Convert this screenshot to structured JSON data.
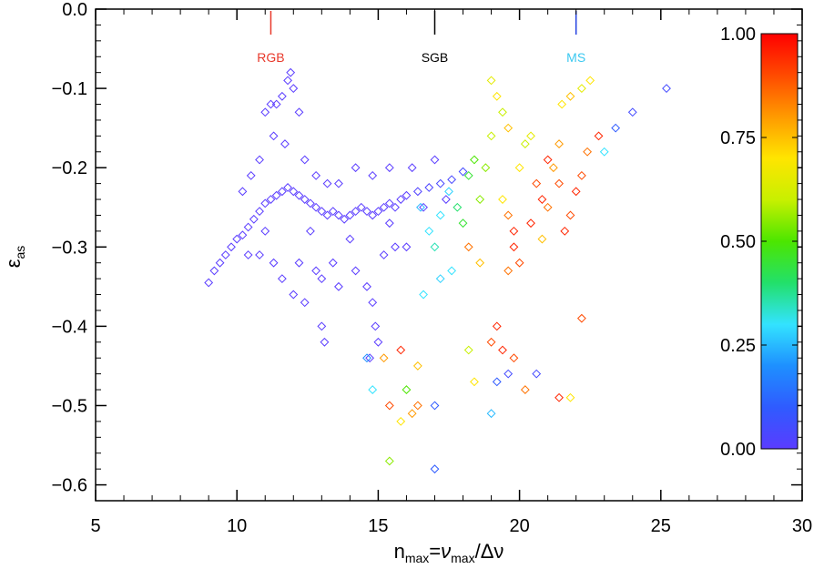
{
  "chart_data": {
    "type": "scatter",
    "title": "",
    "xlabel": "n_max = ν_max/Δν",
    "xlabel_parts": {
      "base": "n",
      "base_sub": "max",
      "eq": "=",
      "nu": "ν",
      "nu_sub": "max",
      "slash": "/Δν"
    },
    "ylabel": "ε_as",
    "ylabel_parts": {
      "symbol": "ε",
      "sub": "as"
    },
    "xlim": [
      5,
      30
    ],
    "ylim": [
      -0.62,
      0.0
    ],
    "xticks": [
      5,
      10,
      15,
      20,
      25,
      30
    ],
    "xtick_labels": [
      "5",
      "10",
      "15",
      "20",
      "25",
      "30"
    ],
    "yticks": [
      0.0,
      -0.1,
      -0.2,
      -0.3,
      -0.4,
      -0.5,
      -0.6
    ],
    "ytick_labels": [
      "0.0",
      "−0.1",
      "−0.2",
      "−0.3",
      "−0.4",
      "−0.5",
      "−0.6"
    ],
    "marker": "diamond-open",
    "grid": false,
    "annotations": [
      {
        "text": "RGB",
        "x": 11.2,
        "color": "#e8382a"
      },
      {
        "text": "SGB",
        "x": 17.0,
        "color": "#000000"
      },
      {
        "text": "MS",
        "x": 22.0,
        "color": "#3ac8f0",
        "line_color": "#2440e0"
      }
    ],
    "colorbar": {
      "range": [
        0.0,
        1.0
      ],
      "ticks": [
        1.0,
        0.75,
        0.5,
        0.25,
        0.0
      ],
      "tick_labels": [
        "1.00",
        "0.75",
        "0.50",
        "0.25",
        "0.00"
      ],
      "colormap": [
        "#5a3cff",
        "#2f5bff",
        "#1e90ff",
        "#33e3ff",
        "#22e06a",
        "#4ce600",
        "#c8f000",
        "#ffe500",
        "#ff9a00",
        "#ff4a00",
        "#ff0000"
      ]
    },
    "series": [
      {
        "description": "RGB branch (c≈0.0–0.05)",
        "points": [
          [
            9.0,
            -0.345,
            0.0
          ],
          [
            9.2,
            -0.33,
            0.0
          ],
          [
            9.4,
            -0.32,
            0.0
          ],
          [
            9.6,
            -0.31,
            0.0
          ],
          [
            9.8,
            -0.3,
            0.0
          ],
          [
            10.0,
            -0.29,
            0.0
          ],
          [
            10.2,
            -0.285,
            0.0
          ],
          [
            10.4,
            -0.275,
            0.0
          ],
          [
            10.6,
            -0.265,
            0.0
          ],
          [
            10.8,
            -0.255,
            0.0
          ],
          [
            11.0,
            -0.245,
            0.0
          ],
          [
            11.2,
            -0.24,
            0.0
          ],
          [
            11.4,
            -0.235,
            0.0
          ],
          [
            11.6,
            -0.23,
            0.0
          ],
          [
            11.8,
            -0.225,
            0.0
          ],
          [
            12.0,
            -0.23,
            0.0
          ],
          [
            12.2,
            -0.235,
            0.0
          ],
          [
            12.4,
            -0.24,
            0.0
          ],
          [
            12.6,
            -0.245,
            0.0
          ],
          [
            12.8,
            -0.25,
            0.0
          ],
          [
            13.0,
            -0.255,
            0.0
          ],
          [
            13.2,
            -0.26,
            0.0
          ],
          [
            13.4,
            -0.255,
            0.0
          ],
          [
            13.6,
            -0.26,
            0.0
          ],
          [
            13.8,
            -0.265,
            0.0
          ],
          [
            14.0,
            -0.26,
            0.0
          ],
          [
            14.2,
            -0.255,
            0.0
          ],
          [
            14.4,
            -0.25,
            0.0
          ],
          [
            14.6,
            -0.255,
            0.0
          ],
          [
            14.8,
            -0.26,
            0.0
          ],
          [
            15.0,
            -0.255,
            0.0
          ],
          [
            15.2,
            -0.25,
            0.0
          ],
          [
            15.4,
            -0.245,
            0.0
          ],
          [
            15.6,
            -0.25,
            0.0
          ],
          [
            15.8,
            -0.24,
            0.0
          ],
          [
            16.0,
            -0.235,
            0.0
          ],
          [
            16.4,
            -0.23,
            0.02
          ],
          [
            16.8,
            -0.225,
            0.03
          ],
          [
            17.2,
            -0.22,
            0.04
          ],
          [
            17.6,
            -0.215,
            0.04
          ],
          [
            18.0,
            -0.205,
            0.05
          ],
          [
            11.0,
            -0.13,
            0.0
          ],
          [
            11.2,
            -0.12,
            0.0
          ],
          [
            11.4,
            -0.12,
            0.0
          ],
          [
            11.6,
            -0.11,
            0.0
          ],
          [
            11.8,
            -0.09,
            0.0
          ],
          [
            11.9,
            -0.08,
            0.0
          ],
          [
            12.0,
            -0.1,
            0.0
          ],
          [
            12.2,
            -0.13,
            0.0
          ],
          [
            11.3,
            -0.16,
            0.0
          ],
          [
            11.7,
            -0.17,
            0.0
          ],
          [
            12.4,
            -0.19,
            0.0
          ],
          [
            12.8,
            -0.21,
            0.0
          ],
          [
            13.2,
            -0.22,
            0.0
          ],
          [
            10.8,
            -0.19,
            0.0
          ],
          [
            10.5,
            -0.21,
            0.0
          ],
          [
            10.2,
            -0.23,
            0.0
          ],
          [
            10.4,
            -0.31,
            0.0
          ],
          [
            10.8,
            -0.31,
            0.0
          ],
          [
            11.3,
            -0.32,
            0.0
          ],
          [
            11.6,
            -0.34,
            0.0
          ],
          [
            12.0,
            -0.36,
            0.0
          ],
          [
            12.4,
            -0.37,
            0.0
          ],
          [
            12.8,
            -0.33,
            0.0
          ],
          [
            13.0,
            -0.4,
            0.0
          ],
          [
            13.1,
            -0.42,
            0.0
          ],
          [
            13.6,
            -0.35,
            0.0
          ],
          [
            14.2,
            -0.33,
            0.0
          ],
          [
            14.6,
            -0.35,
            0.0
          ],
          [
            14.8,
            -0.37,
            0.0
          ],
          [
            14.9,
            -0.4,
            0.0
          ],
          [
            15.0,
            -0.42,
            0.0
          ],
          [
            14.7,
            -0.44,
            0.0
          ],
          [
            15.2,
            -0.31,
            0.0
          ],
          [
            15.6,
            -0.3,
            0.0
          ],
          [
            16.0,
            -0.3,
            0.0
          ],
          [
            14.2,
            -0.2,
            0.0
          ],
          [
            14.8,
            -0.21,
            0.0
          ],
          [
            15.4,
            -0.2,
            0.0
          ],
          [
            16.2,
            -0.2,
            0.0
          ],
          [
            17.0,
            -0.19,
            0.0
          ],
          [
            13.0,
            -0.34,
            0.0
          ],
          [
            13.4,
            -0.32,
            0.0
          ],
          [
            12.2,
            -0.32,
            0.0
          ],
          [
            11.0,
            -0.28,
            0.0
          ],
          [
            12.6,
            -0.28,
            0.0
          ],
          [
            14.0,
            -0.29,
            0.0
          ],
          [
            15.4,
            -0.27,
            0.0
          ],
          [
            16.6,
            -0.25,
            0.0
          ],
          [
            17.4,
            -0.24,
            0.0
          ],
          [
            13.6,
            -0.22,
            0.0
          ]
        ]
      },
      {
        "description": "SGB/MS region (c≈0.2–1.0)",
        "points": [
          [
            16.5,
            -0.25,
            0.25
          ],
          [
            16.8,
            -0.28,
            0.3
          ],
          [
            17.0,
            -0.3,
            0.35
          ],
          [
            17.2,
            -0.26,
            0.3
          ],
          [
            17.5,
            -0.23,
            0.28
          ],
          [
            17.8,
            -0.25,
            0.4
          ],
          [
            18.0,
            -0.27,
            0.45
          ],
          [
            18.2,
            -0.21,
            0.45
          ],
          [
            18.4,
            -0.19,
            0.5
          ],
          [
            18.6,
            -0.24,
            0.55
          ],
          [
            18.8,
            -0.2,
            0.55
          ],
          [
            19.0,
            -0.16,
            0.6
          ],
          [
            19.0,
            -0.09,
            0.65
          ],
          [
            19.2,
            -0.11,
            0.7
          ],
          [
            19.4,
            -0.13,
            0.6
          ],
          [
            19.6,
            -0.15,
            0.75
          ],
          [
            19.4,
            -0.24,
            0.7
          ],
          [
            19.6,
            -0.26,
            0.85
          ],
          [
            19.8,
            -0.28,
            0.95
          ],
          [
            20.0,
            -0.2,
            0.7
          ],
          [
            20.2,
            -0.17,
            0.6
          ],
          [
            20.4,
            -0.16,
            0.65
          ],
          [
            20.6,
            -0.22,
            0.9
          ],
          [
            20.8,
            -0.24,
            0.95
          ],
          [
            21.0,
            -0.25,
            0.85
          ],
          [
            21.2,
            -0.2,
            0.8
          ],
          [
            21.4,
            -0.22,
            0.9
          ],
          [
            21.6,
            -0.28,
            0.95
          ],
          [
            21.8,
            -0.26,
            0.9
          ],
          [
            22.0,
            -0.23,
            0.95
          ],
          [
            22.2,
            -0.21,
            0.9
          ],
          [
            22.4,
            -0.18,
            0.85
          ],
          [
            21.5,
            -0.12,
            0.7
          ],
          [
            21.8,
            -0.11,
            0.75
          ],
          [
            22.2,
            -0.1,
            0.65
          ],
          [
            22.5,
            -0.09,
            0.7
          ],
          [
            22.8,
            -0.16,
            0.95
          ],
          [
            23.0,
            -0.18,
            0.3
          ],
          [
            23.4,
            -0.15,
            0.1
          ],
          [
            24.0,
            -0.13,
            0.05
          ],
          [
            25.2,
            -0.1,
            0.05
          ],
          [
            19.6,
            -0.33,
            0.85
          ],
          [
            20.0,
            -0.32,
            0.9
          ],
          [
            18.6,
            -0.32,
            0.75
          ],
          [
            18.2,
            -0.3,
            0.85
          ],
          [
            17.6,
            -0.33,
            0.3
          ],
          [
            17.2,
            -0.34,
            0.28
          ],
          [
            16.6,
            -0.36,
            0.3
          ],
          [
            19.2,
            -0.4,
            0.95
          ],
          [
            19.0,
            -0.42,
            0.9
          ],
          [
            19.4,
            -0.43,
            0.95
          ],
          [
            19.8,
            -0.44,
            0.9
          ],
          [
            19.6,
            -0.46,
            0.05
          ],
          [
            19.2,
            -0.47,
            0.1
          ],
          [
            19.0,
            -0.51,
            0.25
          ],
          [
            18.2,
            -0.43,
            0.6
          ],
          [
            18.4,
            -0.47,
            0.7
          ],
          [
            16.4,
            -0.45,
            0.75
          ],
          [
            16.0,
            -0.48,
            0.5
          ],
          [
            15.8,
            -0.52,
            0.7
          ],
          [
            16.2,
            -0.51,
            0.8
          ],
          [
            15.4,
            -0.57,
            0.55
          ],
          [
            17.0,
            -0.58,
            0.1
          ],
          [
            17.0,
            -0.5,
            0.1
          ],
          [
            20.2,
            -0.48,
            0.85
          ],
          [
            20.6,
            -0.46,
            0.05
          ],
          [
            21.4,
            -0.49,
            0.95
          ],
          [
            21.8,
            -0.49,
            0.7
          ],
          [
            22.2,
            -0.39,
            0.9
          ],
          [
            14.8,
            -0.48,
            0.3
          ],
          [
            15.2,
            -0.44,
            0.8
          ],
          [
            15.4,
            -0.5,
            0.9
          ],
          [
            14.6,
            -0.44,
            0.2
          ],
          [
            15.8,
            -0.43,
            0.95
          ],
          [
            16.4,
            -0.5,
            0.85
          ],
          [
            19.8,
            -0.3,
            0.95
          ],
          [
            20.4,
            -0.27,
            0.95
          ],
          [
            20.8,
            -0.29,
            0.75
          ],
          [
            21.0,
            -0.19,
            0.95
          ],
          [
            21.4,
            -0.17,
            0.8
          ]
        ]
      }
    ]
  }
}
